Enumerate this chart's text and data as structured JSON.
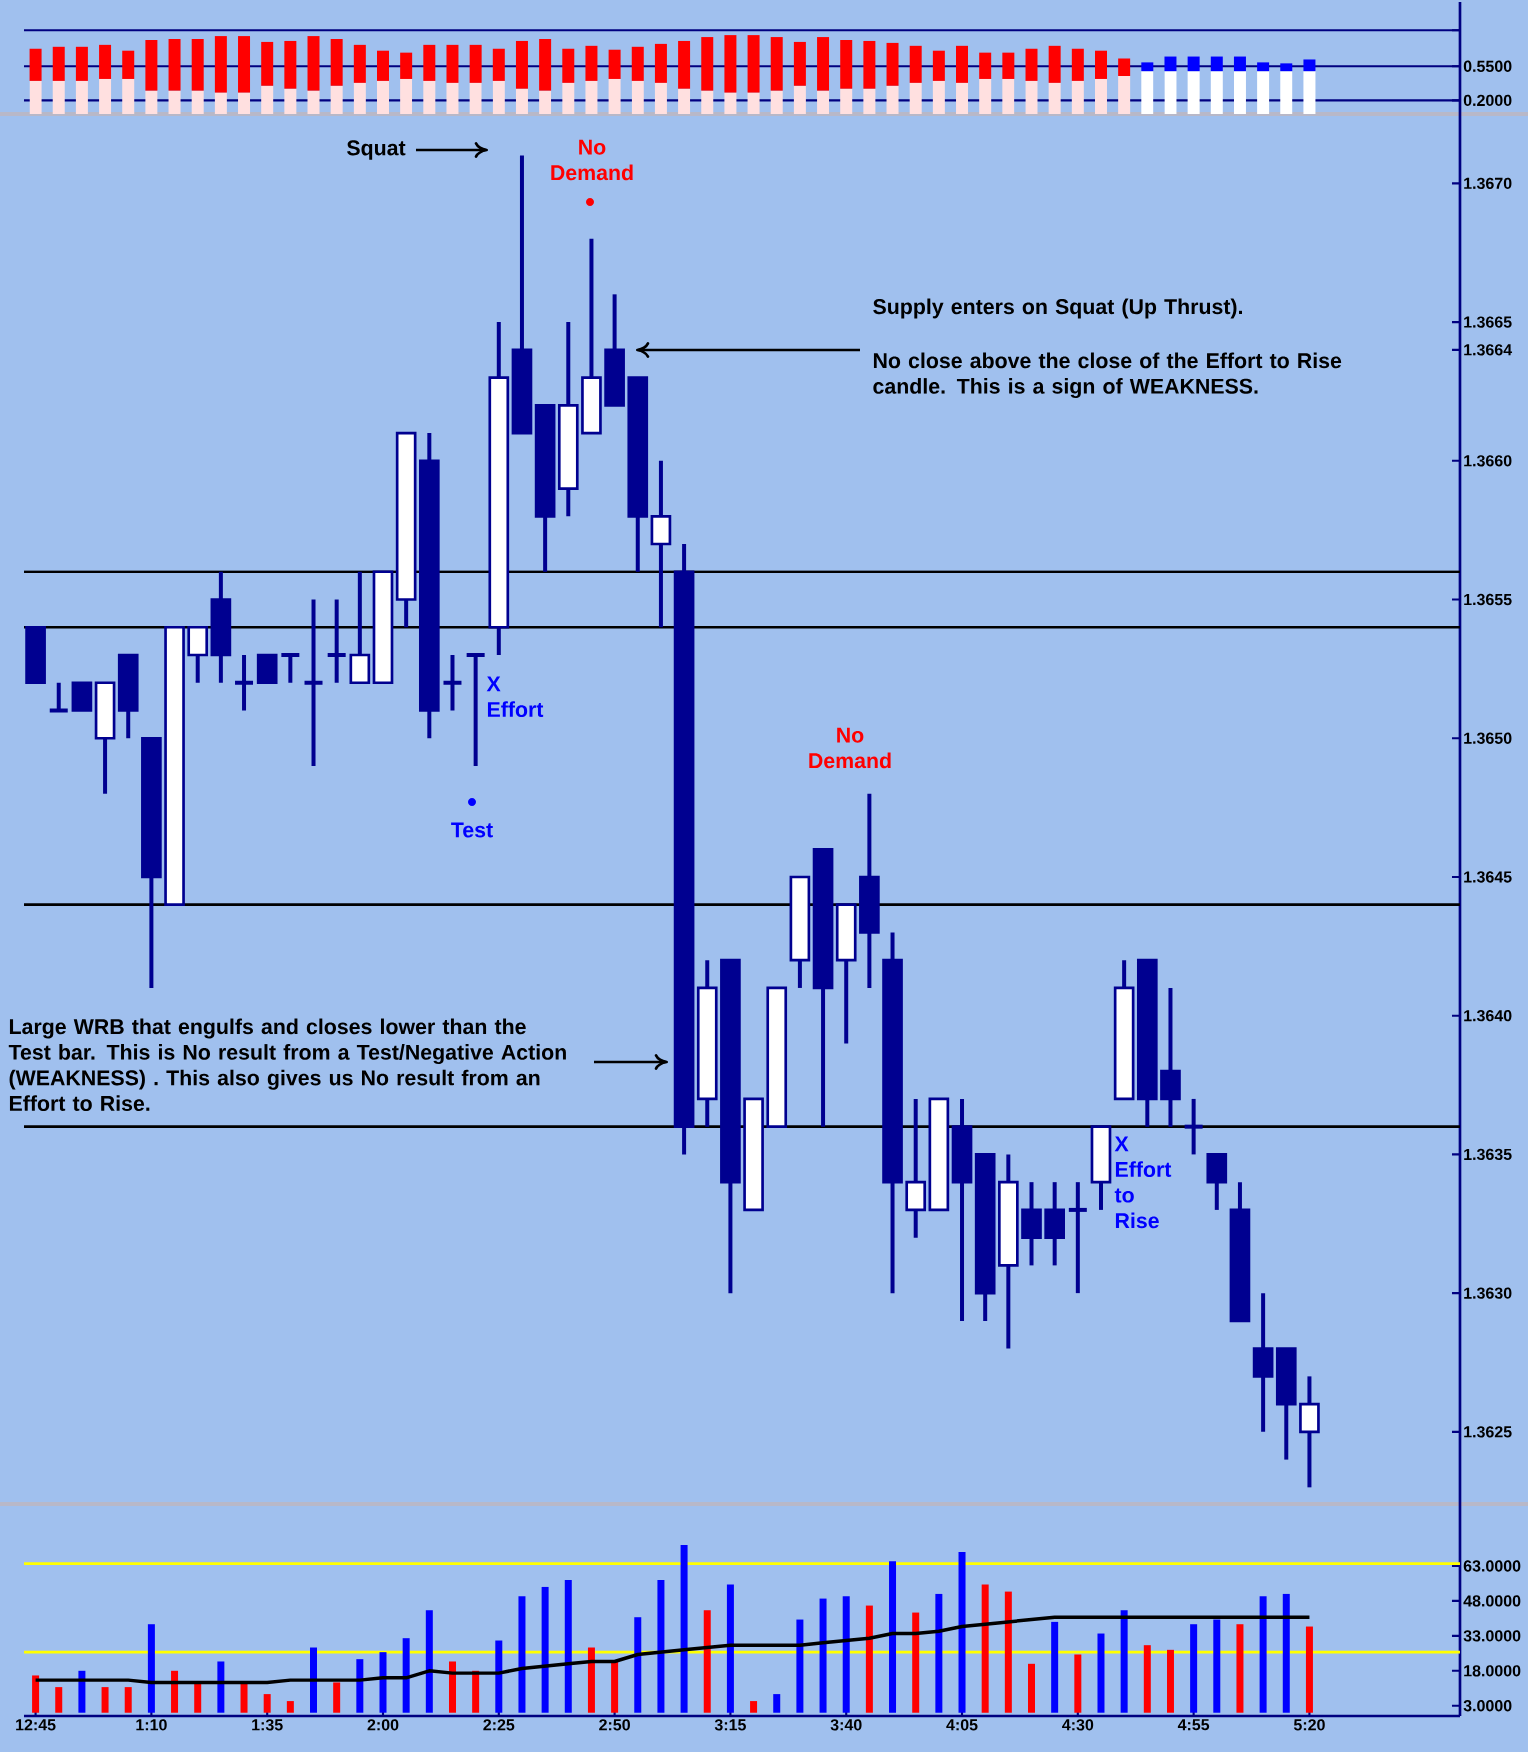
{
  "chart_data": [
    {
      "type": "bar",
      "stacked": true,
      "categories": [
        null,
        null,
        null,
        null,
        null,
        null,
        null,
        null,
        null,
        null,
        null,
        null,
        null,
        null,
        null,
        null,
        null,
        null,
        null,
        null,
        null,
        null,
        null,
        null,
        null,
        null,
        null,
        null,
        null,
        null,
        null,
        null,
        null,
        null,
        null,
        null,
        null,
        null,
        null,
        null,
        null,
        null,
        null,
        null,
        null,
        null,
        null,
        null,
        null,
        null,
        null,
        null,
        null,
        null,
        null,
        null,
        null,
        null,
        null,
        null,
        null,
        null
      ],
      "series": [
        {
          "values": [
            0.4,
            0.4,
            0.4,
            0.42,
            0.42,
            0.3,
            0.3,
            0.3,
            0.28,
            0.28,
            0.35,
            0.32,
            0.3,
            0.35,
            0.38,
            0.4,
            0.42,
            0.4,
            0.38,
            0.38,
            0.4,
            0.32,
            0.3,
            0.38,
            0.4,
            0.42,
            0.4,
            0.38,
            0.32,
            0.3,
            0.28,
            0.28,
            0.3,
            0.35,
            0.3,
            0.32,
            0.32,
            0.35,
            0.38,
            0.4,
            0.38,
            0.42,
            0.42,
            0.4,
            0.38,
            0.4,
            0.42,
            0.45,
            0.5,
            0.5,
            0.5,
            0.5,
            0.5,
            0.5,
            0.5,
            0.5,
            null,
            null,
            null,
            null,
            null,
            null
          ],
          "colors": [
            "#ffe0e0",
            "#ffe0e0",
            "#ffe0e0",
            "#ffe0e0",
            "#ffe0e0",
            "#ffe0e0",
            "#ffe0e0",
            "#ffe0e0",
            "#ffe0e0",
            "#ffe0e0",
            "#ffe0e0",
            "#ffe0e0",
            "#ffe0e0",
            "#ffe0e0",
            "#ffe0e0",
            "#ffe0e0",
            "#ffe0e0",
            "#ffe0e0",
            "#ffe0e0",
            "#ffe0e0",
            "#ffe0e0",
            "#ffe0e0",
            "#ffe0e0",
            "#ffe0e0",
            "#ffe0e0",
            "#ffe0e0",
            "#ffe0e0",
            "#ffe0e0",
            "#ffe0e0",
            "#ffe0e0",
            "#ffe0e0",
            "#ffe0e0",
            "#ffe0e0",
            "#ffe0e0",
            "#ffe0e0",
            "#ffe0e0",
            "#ffe0e0",
            "#ffe0e0",
            "#ffe0e0",
            "#ffe0e0",
            "#ffe0e0",
            "#ffe0e0",
            "#ffe0e0",
            "#ffe0e0",
            "#ffe0e0",
            "#ffe0e0",
            "#ffe0e0",
            "#ffe0e0",
            "#ffffff",
            "#ffffff",
            "#ffffff",
            "#ffffff",
            "#ffffff",
            "#ffffff",
            "#ffffff",
            "#ffffff",
            null,
            null,
            null,
            null,
            null,
            null
          ]
        },
        {
          "values": [
            0.33,
            0.35,
            0.35,
            0.35,
            0.29,
            0.52,
            0.53,
            0.53,
            0.58,
            0.58,
            0.45,
            0.49,
            0.56,
            0.48,
            0.39,
            0.31,
            0.27,
            0.37,
            0.39,
            0.39,
            0.33,
            0.49,
            0.53,
            0.35,
            0.36,
            0.3,
            0.35,
            0.4,
            0.49,
            0.55,
            0.59,
            0.59,
            0.55,
            0.45,
            0.55,
            0.5,
            0.49,
            0.44,
            0.38,
            0.31,
            0.38,
            0.27,
            0.27,
            0.33,
            0.38,
            0.33,
            0.29,
            0.18,
            0.09,
            0.15,
            0.15,
            0.15,
            0.15,
            0.09,
            0.08,
            0.12,
            null,
            null,
            null,
            null,
            null,
            null
          ],
          "colors": [
            "#ff0000",
            "#ff0000",
            "#ff0000",
            "#ff0000",
            "#ff0000",
            "#ff0000",
            "#ff0000",
            "#ff0000",
            "#ff0000",
            "#ff0000",
            "#ff0000",
            "#ff0000",
            "#ff0000",
            "#ff0000",
            "#ff0000",
            "#ff0000",
            "#ff0000",
            "#ff0000",
            "#ff0000",
            "#ff0000",
            "#ff0000",
            "#ff0000",
            "#ff0000",
            "#ff0000",
            "#ff0000",
            "#ff0000",
            "#ff0000",
            "#ff0000",
            "#ff0000",
            "#ff0000",
            "#ff0000",
            "#ff0000",
            "#ff0000",
            "#ff0000",
            "#ff0000",
            "#ff0000",
            "#ff0000",
            "#ff0000",
            "#ff0000",
            "#ff0000",
            "#ff0000",
            "#ff0000",
            "#ff0000",
            "#ff0000",
            "#ff0000",
            "#ff0000",
            "#ff0000",
            "#ff0000",
            "#0000ff",
            "#0000ff",
            "#0000ff",
            "#0000ff",
            "#0000ff",
            "#0000ff",
            "#0000ff",
            "#0000ff",
            null,
            null,
            null,
            null,
            null,
            null
          ]
        }
      ],
      "ylim": [
        0.06,
        1.21
      ],
      "yticks": [
        {
          "value": 0.2,
          "label": "0.2000"
        },
        {
          "value": 0.55,
          "label": "0.5500"
        },
        {
          "value": 0.92,
          "label": null
        }
      ],
      "grid": "y",
      "tick_labels": "y"
    },
    {
      "type": "candlestick",
      "categories": [
        null,
        null,
        null,
        null,
        null,
        null,
        null,
        null,
        null,
        null,
        null,
        null,
        null,
        null,
        null,
        null,
        null,
        null,
        null,
        null,
        null,
        null,
        null,
        null,
        null,
        null,
        null,
        null,
        null,
        null,
        null,
        null,
        null,
        null,
        null,
        null,
        null,
        null,
        null,
        null,
        null,
        null,
        null,
        null,
        null,
        null,
        null,
        null,
        null,
        null,
        null,
        null,
        null,
        null,
        null,
        null,
        null,
        null,
        null,
        null,
        null,
        null
      ],
      "ohlc": [
        [
          1.3654,
          1.3654,
          1.3652,
          1.3652
        ],
        [
          1.3651,
          1.3652,
          1.3651,
          1.3651
        ],
        [
          1.3652,
          1.3652,
          1.3651,
          1.3651
        ],
        [
          1.365,
          1.3652,
          1.3648,
          1.3652
        ],
        [
          1.3653,
          1.3653,
          1.365,
          1.3651
        ],
        [
          1.365,
          1.365,
          1.3641,
          1.3645
        ],
        [
          1.3644,
          1.3654,
          1.3644,
          1.3654
        ],
        [
          1.3653,
          1.3654,
          1.3652,
          1.3654
        ],
        [
          1.3655,
          1.3656,
          1.3652,
          1.3653
        ],
        [
          1.3652,
          1.3653,
          1.3651,
          1.3652
        ],
        [
          1.3653,
          1.3653,
          1.3652,
          1.3652
        ],
        [
          1.3653,
          1.3653,
          1.3652,
          1.3653
        ],
        [
          1.3652,
          1.3655,
          1.3649,
          1.3652
        ],
        [
          1.3653,
          1.3655,
          1.3652,
          1.3653
        ],
        [
          1.3652,
          1.3656,
          1.3652,
          1.3653
        ],
        [
          1.3652,
          1.3656,
          1.3652,
          1.3656
        ],
        [
          1.3655,
          1.3661,
          1.3654,
          1.3661
        ],
        [
          1.366,
          1.3661,
          1.365,
          1.3651
        ],
        [
          1.3652,
          1.3653,
          1.3651,
          1.3652
        ],
        [
          1.3653,
          1.3653,
          1.3649,
          1.3653
        ],
        [
          1.3654,
          1.3665,
          1.3653,
          1.3663
        ],
        [
          1.3664,
          1.3671,
          1.3661,
          1.3661
        ],
        [
          1.3662,
          1.3662,
          1.3656,
          1.3658
        ],
        [
          1.3659,
          1.3665,
          1.3658,
          1.3662
        ],
        [
          1.3661,
          1.3668,
          1.3661,
          1.3663
        ],
        [
          1.3664,
          1.3666,
          1.3662,
          1.3662
        ],
        [
          1.3663,
          1.3663,
          1.3656,
          1.3658
        ],
        [
          1.3657,
          1.366,
          1.3654,
          1.3658
        ],
        [
          1.3656,
          1.3657,
          1.3635,
          1.3636
        ],
        [
          1.3637,
          1.3642,
          1.3636,
          1.3641
        ],
        [
          1.3642,
          1.3642,
          1.363,
          1.3634
        ],
        [
          1.3633,
          1.3637,
          1.3633,
          1.3637
        ],
        [
          1.3636,
          1.3641,
          1.3636,
          1.3641
        ],
        [
          1.3642,
          1.3645,
          1.3641,
          1.3645
        ],
        [
          1.3646,
          1.3646,
          1.3636,
          1.3641
        ],
        [
          1.3642,
          1.3644,
          1.3639,
          1.3644
        ],
        [
          1.3645,
          1.3648,
          1.3641,
          1.3643
        ],
        [
          1.3642,
          1.3643,
          1.363,
          1.3634
        ],
        [
          1.3633,
          1.3637,
          1.3632,
          1.3634
        ],
        [
          1.3633,
          1.3637,
          1.3633,
          1.3637
        ],
        [
          1.3636,
          1.3637,
          1.3629,
          1.3634
        ],
        [
          1.3635,
          1.3635,
          1.3629,
          1.363
        ],
        [
          1.3631,
          1.3635,
          1.3628,
          1.3634
        ],
        [
          1.3633,
          1.3634,
          1.3631,
          1.3632
        ],
        [
          1.3633,
          1.3634,
          1.3631,
          1.3632
        ],
        [
          1.3633,
          1.3634,
          1.363,
          1.3633
        ],
        [
          1.3634,
          1.3636,
          1.3633,
          1.3636
        ],
        [
          1.3637,
          1.3642,
          1.3637,
          1.3641
        ],
        [
          1.3642,
          1.3642,
          1.3636,
          1.3637
        ],
        [
          1.3638,
          1.3641,
          1.3636,
          1.3637
        ],
        [
          1.3636,
          1.3637,
          1.3635,
          1.3636
        ],
        [
          1.3635,
          1.3635,
          1.3633,
          1.3634
        ],
        [
          1.3633,
          1.3634,
          1.3629,
          1.3629
        ],
        [
          1.3628,
          1.363,
          1.3625,
          1.3627
        ],
        [
          1.3628,
          1.3628,
          1.3624,
          1.3626
        ],
        [
          1.3625,
          1.3627,
          1.3623,
          1.3626
        ],
        null,
        null,
        null,
        null,
        null,
        null
      ],
      "color": "#000090",
      "ylim": [
        1.36224,
        1.36725
      ],
      "yticks": [
        {
          "value": 1.3625,
          "label": "1.3625"
        },
        {
          "value": 1.363,
          "label": "1.3630"
        },
        {
          "value": 1.3635,
          "label": "1.3635"
        },
        {
          "value": 1.364,
          "label": "1.3640"
        },
        {
          "value": 1.3645,
          "label": "1.3645"
        },
        {
          "value": 1.365,
          "label": "1.3650"
        },
        {
          "value": 1.3655,
          "label": "1.3655"
        },
        {
          "value": 1.366,
          "label": "1.3660"
        },
        {
          "value": 1.3664,
          "label": "1.3664"
        },
        {
          "value": 1.3665,
          "label": "1.3665"
        },
        {
          "value": 1.367,
          "label": "1.3670"
        }
      ],
      "tick_labels": "y",
      "ref_lines": [
        {
          "axis": "y",
          "value": 1.3654,
          "color": "#000000"
        },
        {
          "axis": "y",
          "value": 1.3644,
          "color": "#000000"
        },
        {
          "axis": "y",
          "value": 1.3656,
          "color": "#000000"
        },
        {
          "axis": "y",
          "value": 1.3636,
          "color": "#000000"
        }
      ],
      "annotations": [
        "Squat",
        "No Demand",
        "Supply enters on Squat (Up Thrust).",
        "No close above the close of the Effort to Rise candle. This is a sign of WEAKNESS.",
        "X Effort",
        "Test",
        "No Demand",
        "Large WRB that engulfs and closes lower than the Test bar. This is No result from a Test/Negative Action (WEAKNESS) . This also gives us No result from an Effort to Rise.",
        "X Effort to Rise"
      ]
    },
    {
      "type": "bar",
      "categories": [
        "12:45",
        null,
        null,
        null,
        null,
        "1:10",
        null,
        null,
        null,
        null,
        "1:35",
        null,
        null,
        null,
        null,
        "2:00",
        null,
        null,
        null,
        null,
        "2:25",
        null,
        null,
        null,
        null,
        "2:50",
        null,
        null,
        null,
        null,
        "3:15",
        null,
        null,
        null,
        null,
        "3:40",
        null,
        null,
        null,
        null,
        "4:05",
        null,
        null,
        null,
        null,
        "4:30",
        null,
        null,
        null,
        null,
        "4:55",
        null,
        null,
        null,
        null,
        "5:20",
        null,
        null,
        null,
        null,
        null,
        null
      ],
      "series": [
        {
          "values": [
            16,
            11,
            18,
            11,
            11,
            38,
            18,
            13,
            22,
            13,
            8,
            5,
            28,
            13,
            23,
            26,
            32,
            44,
            22,
            18,
            31,
            50,
            54,
            57,
            28,
            22,
            41,
            57,
            72,
            44,
            55,
            5,
            8,
            40,
            49,
            50,
            46,
            65,
            43,
            51,
            69,
            55,
            52,
            21,
            39,
            25,
            34,
            44,
            29,
            27,
            38,
            40,
            38,
            50,
            51,
            37,
            null,
            null,
            null,
            null,
            null,
            null
          ],
          "colors": [
            "#ff0000",
            "#ff0000",
            "#0000ff",
            "#ff0000",
            "#ff0000",
            "#0000ff",
            "#ff0000",
            "#ff0000",
            "#0000ff",
            "#ff0000",
            "#ff0000",
            "#ff0000",
            "#0000ff",
            "#ff0000",
            "#0000ff",
            "#0000ff",
            "#0000ff",
            "#0000ff",
            "#ff0000",
            "#ff0000",
            "#0000ff",
            "#0000ff",
            "#0000ff",
            "#0000ff",
            "#ff0000",
            "#ff0000",
            "#0000ff",
            "#0000ff",
            "#0000ff",
            "#ff0000",
            "#0000ff",
            "#ff0000",
            "#0000ff",
            "#0000ff",
            "#0000ff",
            "#0000ff",
            "#ff0000",
            "#0000ff",
            "#ff0000",
            "#0000ff",
            "#0000ff",
            "#ff0000",
            "#ff0000",
            "#ff0000",
            "#0000ff",
            "#ff0000",
            "#0000ff",
            "#0000ff",
            "#ff0000",
            "#ff0000",
            "#0000ff",
            "#0000ff",
            "#ff0000",
            "#0000ff",
            "#0000ff",
            "#ff0000",
            null,
            null,
            null,
            null,
            null,
            null
          ]
        },
        {
          "type": "line",
          "color": "#000000",
          "values": [
            14,
            14,
            14,
            14,
            14,
            13,
            13,
            13,
            13,
            13,
            13,
            14,
            14,
            14,
            14,
            15,
            15,
            18,
            17,
            17,
            17,
            19,
            20,
            21,
            22,
            22,
            25,
            26,
            27,
            28,
            29,
            29,
            29,
            29,
            30,
            31,
            32,
            34,
            34,
            35,
            37,
            38,
            39,
            40,
            41,
            41,
            41,
            41,
            41,
            41,
            41,
            41,
            41,
            41,
            41,
            41,
            null,
            null,
            null,
            null,
            null,
            null
          ]
        }
      ],
      "ylim": [
        -1.4,
        89.6
      ],
      "yticks": [
        {
          "value": 3,
          "label": "3.0000"
        },
        {
          "value": 18,
          "label": "18.0000"
        },
        {
          "value": 33,
          "label": "33.0000"
        },
        {
          "value": 48,
          "label": "48.0000"
        },
        {
          "value": 63,
          "label": "63.0000"
        }
      ],
      "ref_lines": [
        {
          "axis": "y",
          "value": 64,
          "color": "#ffff00"
        },
        {
          "axis": "y",
          "value": 26,
          "color": "#ffff00"
        }
      ]
    }
  ]
}
